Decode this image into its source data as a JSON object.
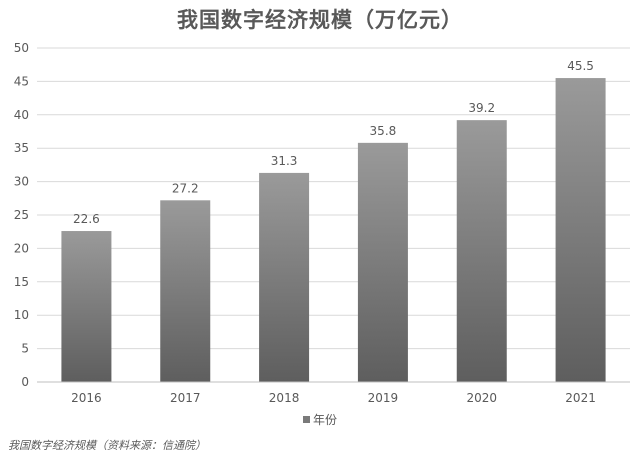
{
  "chart_data": {
    "type": "bar",
    "title": "我国数字经济规模（万亿元）",
    "categories": [
      "2016",
      "2017",
      "2018",
      "2019",
      "2020",
      "2021"
    ],
    "series": [
      {
        "name": "年份",
        "values": [
          22.6,
          27.2,
          31.3,
          35.8,
          39.2,
          45.5
        ]
      }
    ],
    "data_labels": [
      "22.6",
      "27.2",
      "31.3",
      "35.8",
      "39.2",
      "45.5"
    ],
    "y_ticks": [
      "0",
      "5",
      "10",
      "15",
      "20",
      "25",
      "30",
      "35",
      "40",
      "45",
      "50"
    ],
    "ylim": [
      0,
      50
    ],
    "grid": true,
    "legend": "bottom-center",
    "bar_color": "#7a7a7a",
    "grid_color": "#d9d9d9"
  },
  "source_note": "我国数字经济规模（资料来源：信通院）"
}
